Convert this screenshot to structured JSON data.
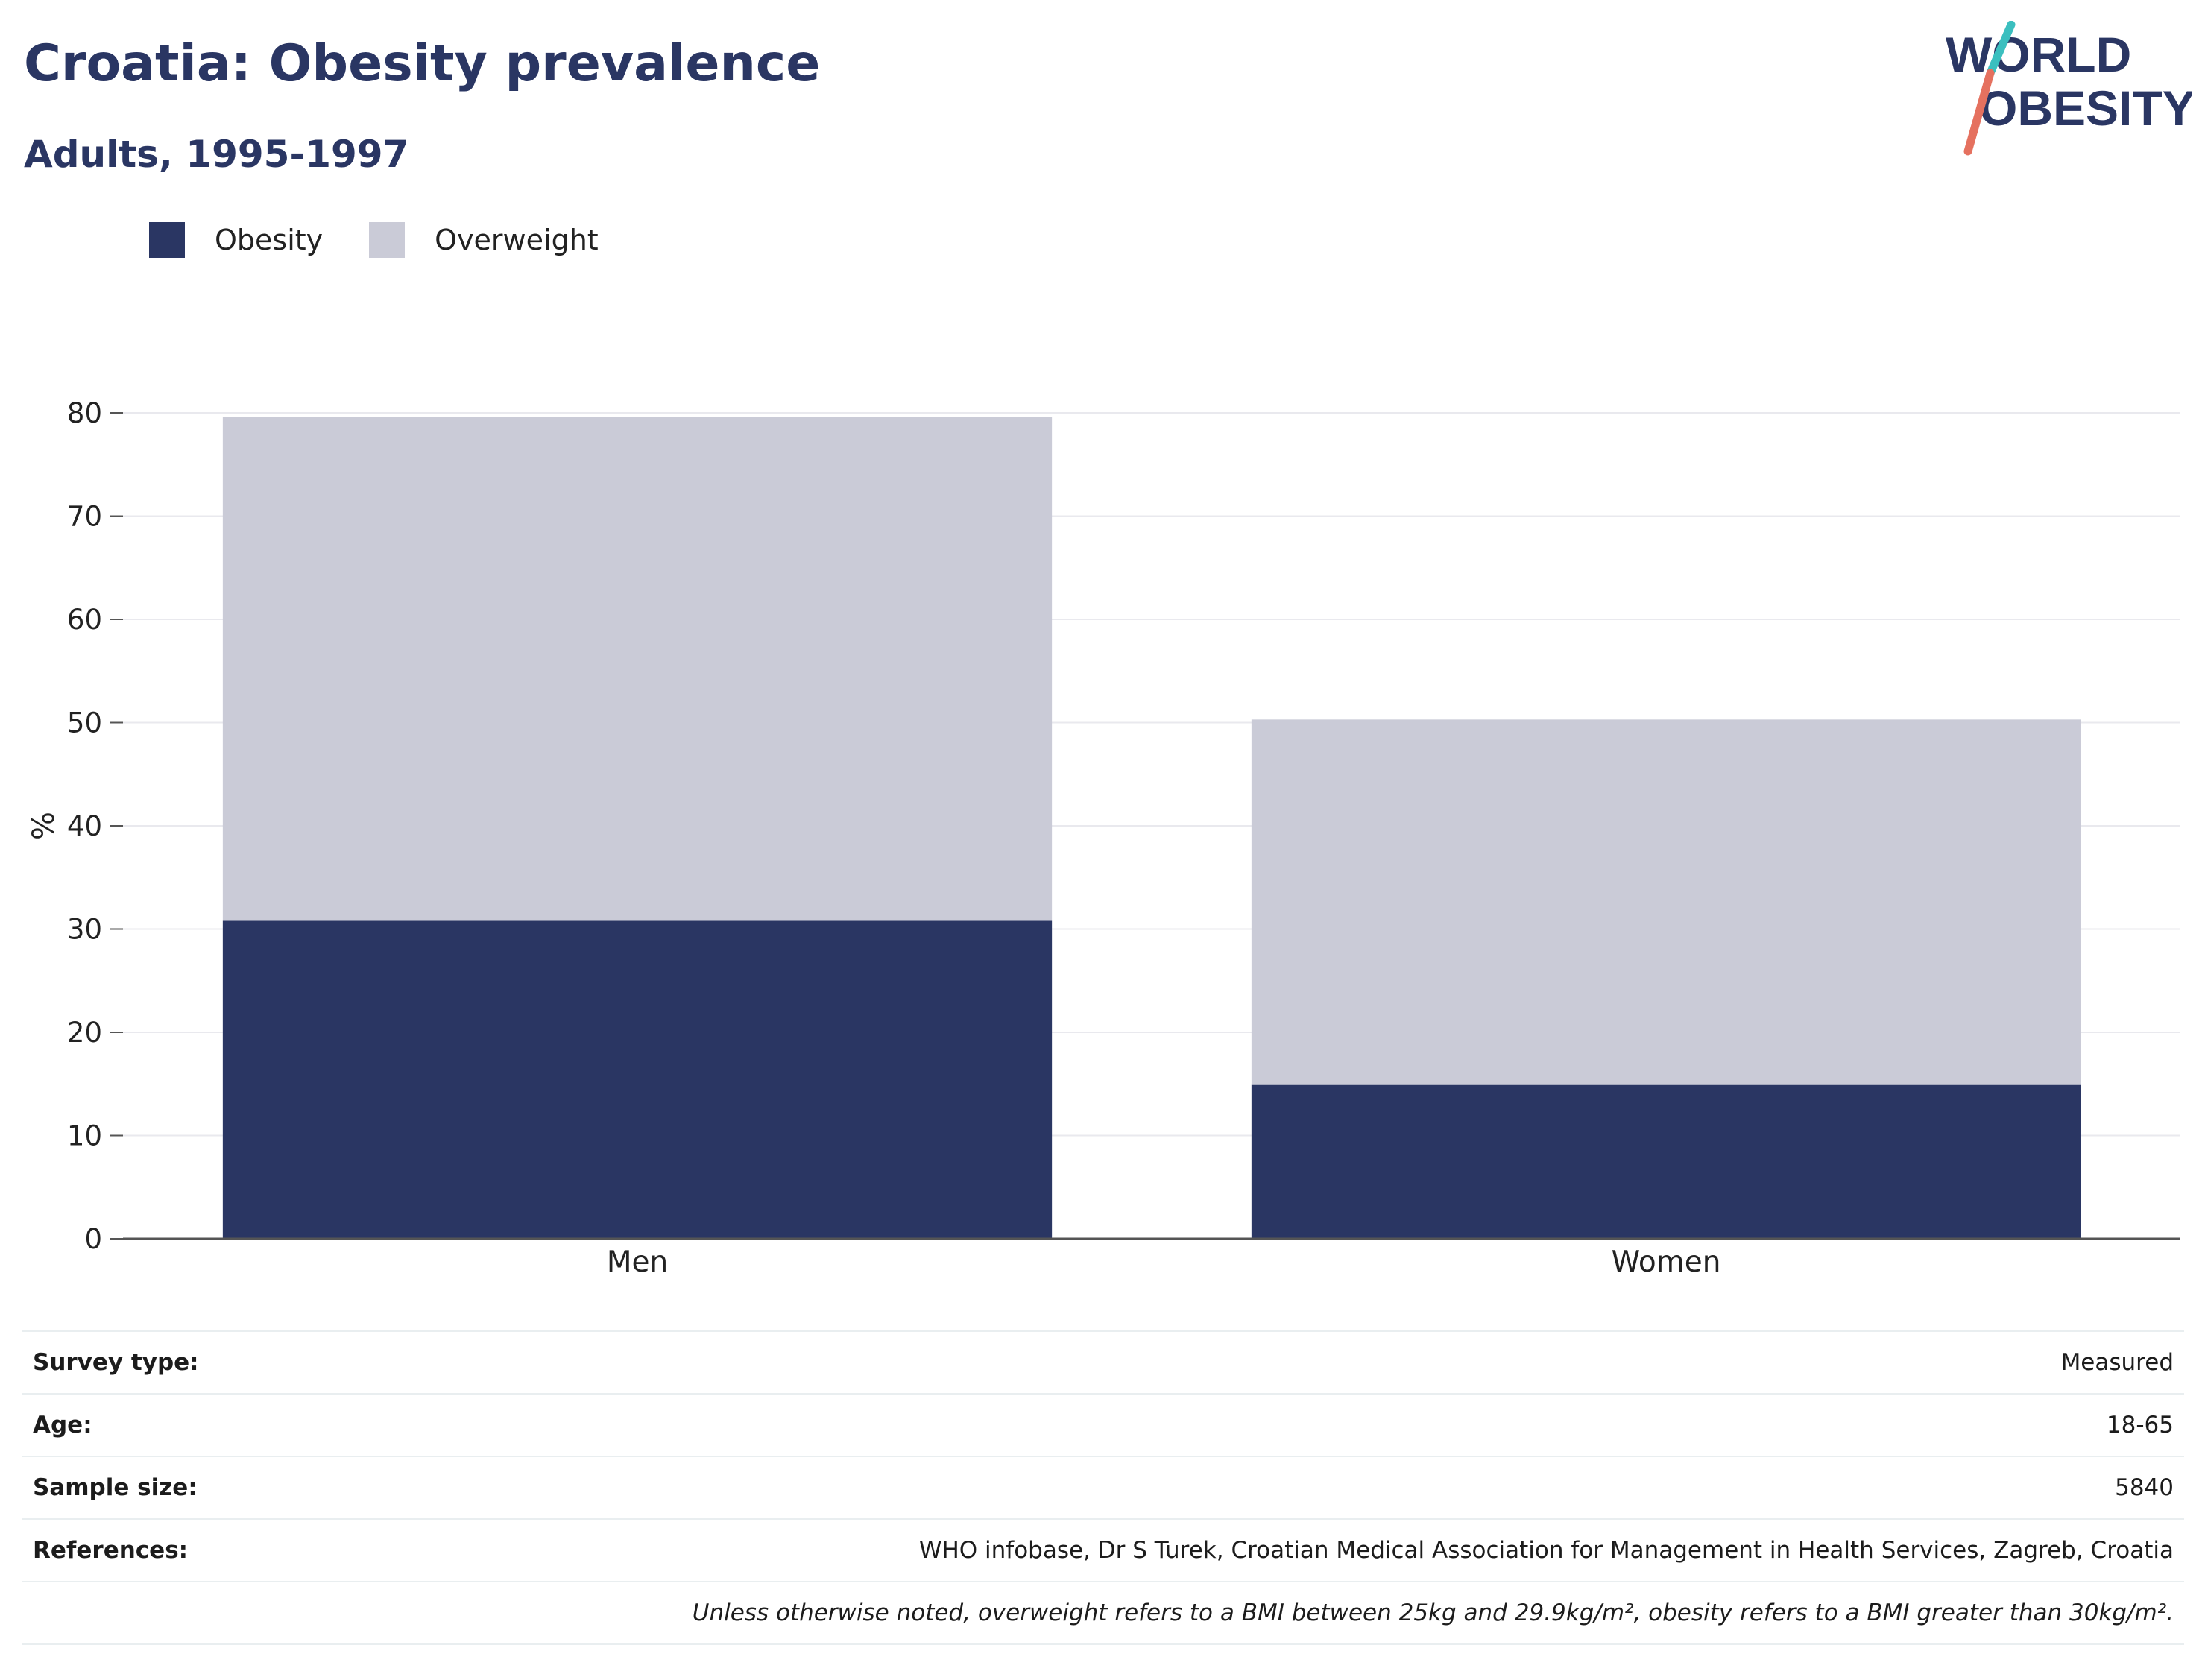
{
  "header": {
    "title": "Croatia: Obesity prevalence",
    "subtitle": "Adults, 1995-1997"
  },
  "logo": {
    "line1": "WORLD",
    "line2": "OBESITY"
  },
  "colors": {
    "obesity": "#2a3663",
    "overweight": "#cacbd7",
    "logo_teal": "#3bbfbf",
    "logo_coral": "#e5715f",
    "axis": "#555555",
    "grid": "#e9e9ee"
  },
  "chart_data": {
    "type": "bar",
    "stacked": true,
    "categories": [
      "Men",
      "Women"
    ],
    "series": [
      {
        "name": "Obesity",
        "values": [
          30.8,
          14.9
        ]
      },
      {
        "name": "Overweight",
        "values": [
          48.8,
          35.4
        ]
      }
    ],
    "ylabel": "%",
    "ylim": [
      0,
      80
    ],
    "yticks": [
      0,
      10,
      20,
      30,
      40,
      50,
      60,
      70,
      80
    ],
    "grid": true,
    "legend": "top-left"
  },
  "info": {
    "rows": [
      {
        "key": "Survey type:",
        "value": "Measured"
      },
      {
        "key": "Age:",
        "value": "18-65"
      },
      {
        "key": "Sample size:",
        "value": "5840"
      },
      {
        "key": "References:",
        "value": "WHO infobase, Dr S Turek, Croatian Medical Association for Management in Health Services, Zagreb, Croatia"
      }
    ],
    "note": "Unless otherwise noted, overweight refers to a BMI between 25kg and 29.9kg/m², obesity refers to a BMI greater than 30kg/m²."
  }
}
